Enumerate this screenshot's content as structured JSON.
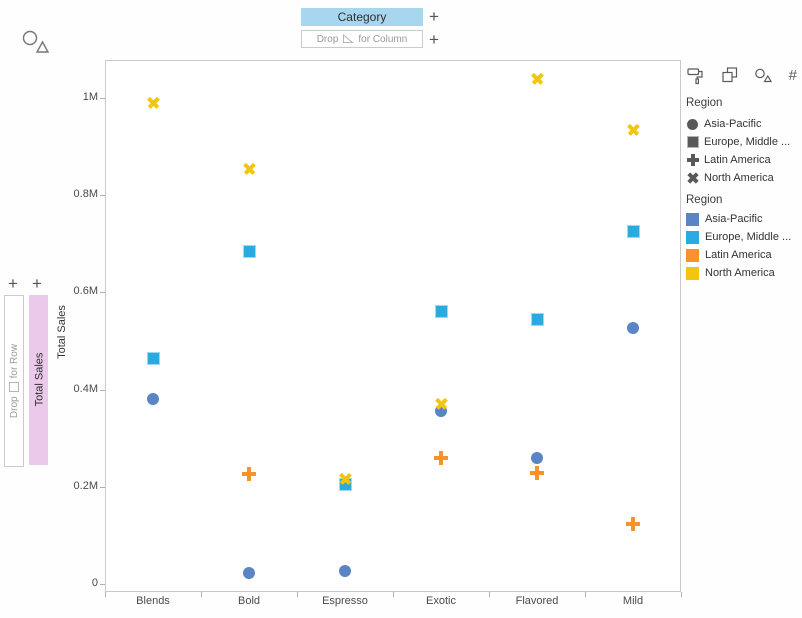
{
  "ui": {
    "plus": "+",
    "hash": "#"
  },
  "shelves": {
    "column": {
      "pill": "Category",
      "drop_prefix": "Drop",
      "drop_suffix": "for Column"
    },
    "row": {
      "pill": "Total Sales",
      "drop_prefix": "Drop",
      "drop_suffix": "for Row"
    }
  },
  "axes": {
    "y_title": "Total Sales"
  },
  "legend_panel": {
    "toolbar_icons": [
      "paint-roller",
      "layers",
      "shapes",
      "number"
    ],
    "shape_legend": {
      "title": "Region",
      "items": [
        {
          "shape": "circle",
          "label": "Asia-Pacific"
        },
        {
          "shape": "square",
          "label": "Europe, Middle ..."
        },
        {
          "shape": "plus",
          "label": "Latin America"
        },
        {
          "shape": "x",
          "label": "North America"
        }
      ],
      "glyph_color": "#595959"
    },
    "color_legend": {
      "title": "Region",
      "items": [
        {
          "color": "#5B84C4",
          "label": "Asia-Pacific"
        },
        {
          "color": "#29ABE2",
          "label": "Europe, Middle ..."
        },
        {
          "color": "#F6932C",
          "label": "Latin America"
        },
        {
          "color": "#F3C50F",
          "label": "North America"
        }
      ]
    }
  },
  "chart_data": {
    "type": "scatter",
    "title": "",
    "xlabel": "Category",
    "ylabel": "Total Sales",
    "categories": [
      "Blends",
      "Bold",
      "Espresso",
      "Exotic",
      "Flavored",
      "Mild"
    ],
    "series": [
      {
        "name": "Asia-Pacific",
        "shape": "circle",
        "color": "#5B84C4",
        "values": [
          380000,
          23000,
          27000,
          356000,
          260000,
          527000
        ]
      },
      {
        "name": "Europe, Middle ...",
        "shape": "square",
        "color": "#29ABE2",
        "values": [
          463000,
          685000,
          205000,
          560000,
          545000,
          725000
        ]
      },
      {
        "name": "Latin America",
        "shape": "plus",
        "color": "#F6932C",
        "values": [
          null,
          226000,
          null,
          260000,
          228000,
          124000
        ]
      },
      {
        "name": "North America",
        "shape": "x",
        "color": "#F3C50F",
        "values": [
          990000,
          855000,
          218000,
          372000,
          1040000,
          935000
        ]
      }
    ],
    "ylim": [
      0,
      1080000
    ],
    "y_ticks": [
      {
        "label": "0",
        "value": 0
      },
      {
        "label": "0.2M",
        "value": 200000
      },
      {
        "label": "0.4M",
        "value": 400000
      },
      {
        "label": "0.6M",
        "value": 600000
      },
      {
        "label": "0.8M",
        "value": 800000
      },
      {
        "label": "1M",
        "value": 1000000
      }
    ],
    "grid": false,
    "legend_position": "right"
  }
}
